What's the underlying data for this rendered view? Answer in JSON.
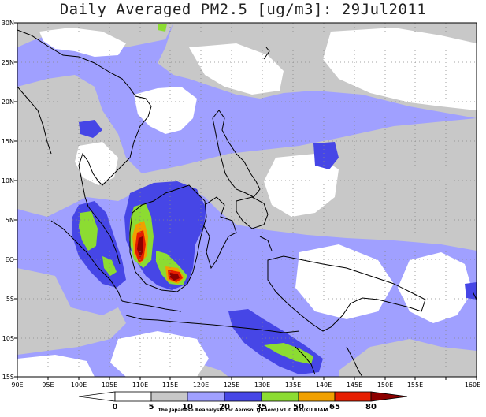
{
  "title": "Daily Averaged PM2.5 [ug/m3]: 29Jul2011",
  "lat_labels": [
    "30N",
    "25N",
    "20N",
    "15N",
    "10N",
    "5N",
    "EQ",
    "5S",
    "10S",
    "15S"
  ],
  "lon_labels": [
    "90E",
    "95E",
    "100E",
    "105E",
    "110E",
    "115E",
    "120E",
    "125E",
    "130E",
    "135E",
    "140E",
    "145E",
    "150E",
    "155E",
    "160E"
  ],
  "colorbar": {
    "levels": [
      "0",
      "5",
      "10",
      "20",
      "35",
      "50",
      "65",
      "80"
    ],
    "colors": [
      "#ffffff",
      "#c8c8c8",
      "#a0a0ff",
      "#4646e6",
      "#8cdc32",
      "#f0a000",
      "#e61e00",
      "#8c0000"
    ]
  },
  "credit": "The Japanese Reanalysis for Aerosol (JRAero) v1.0 MRI/KU RIAM"
}
